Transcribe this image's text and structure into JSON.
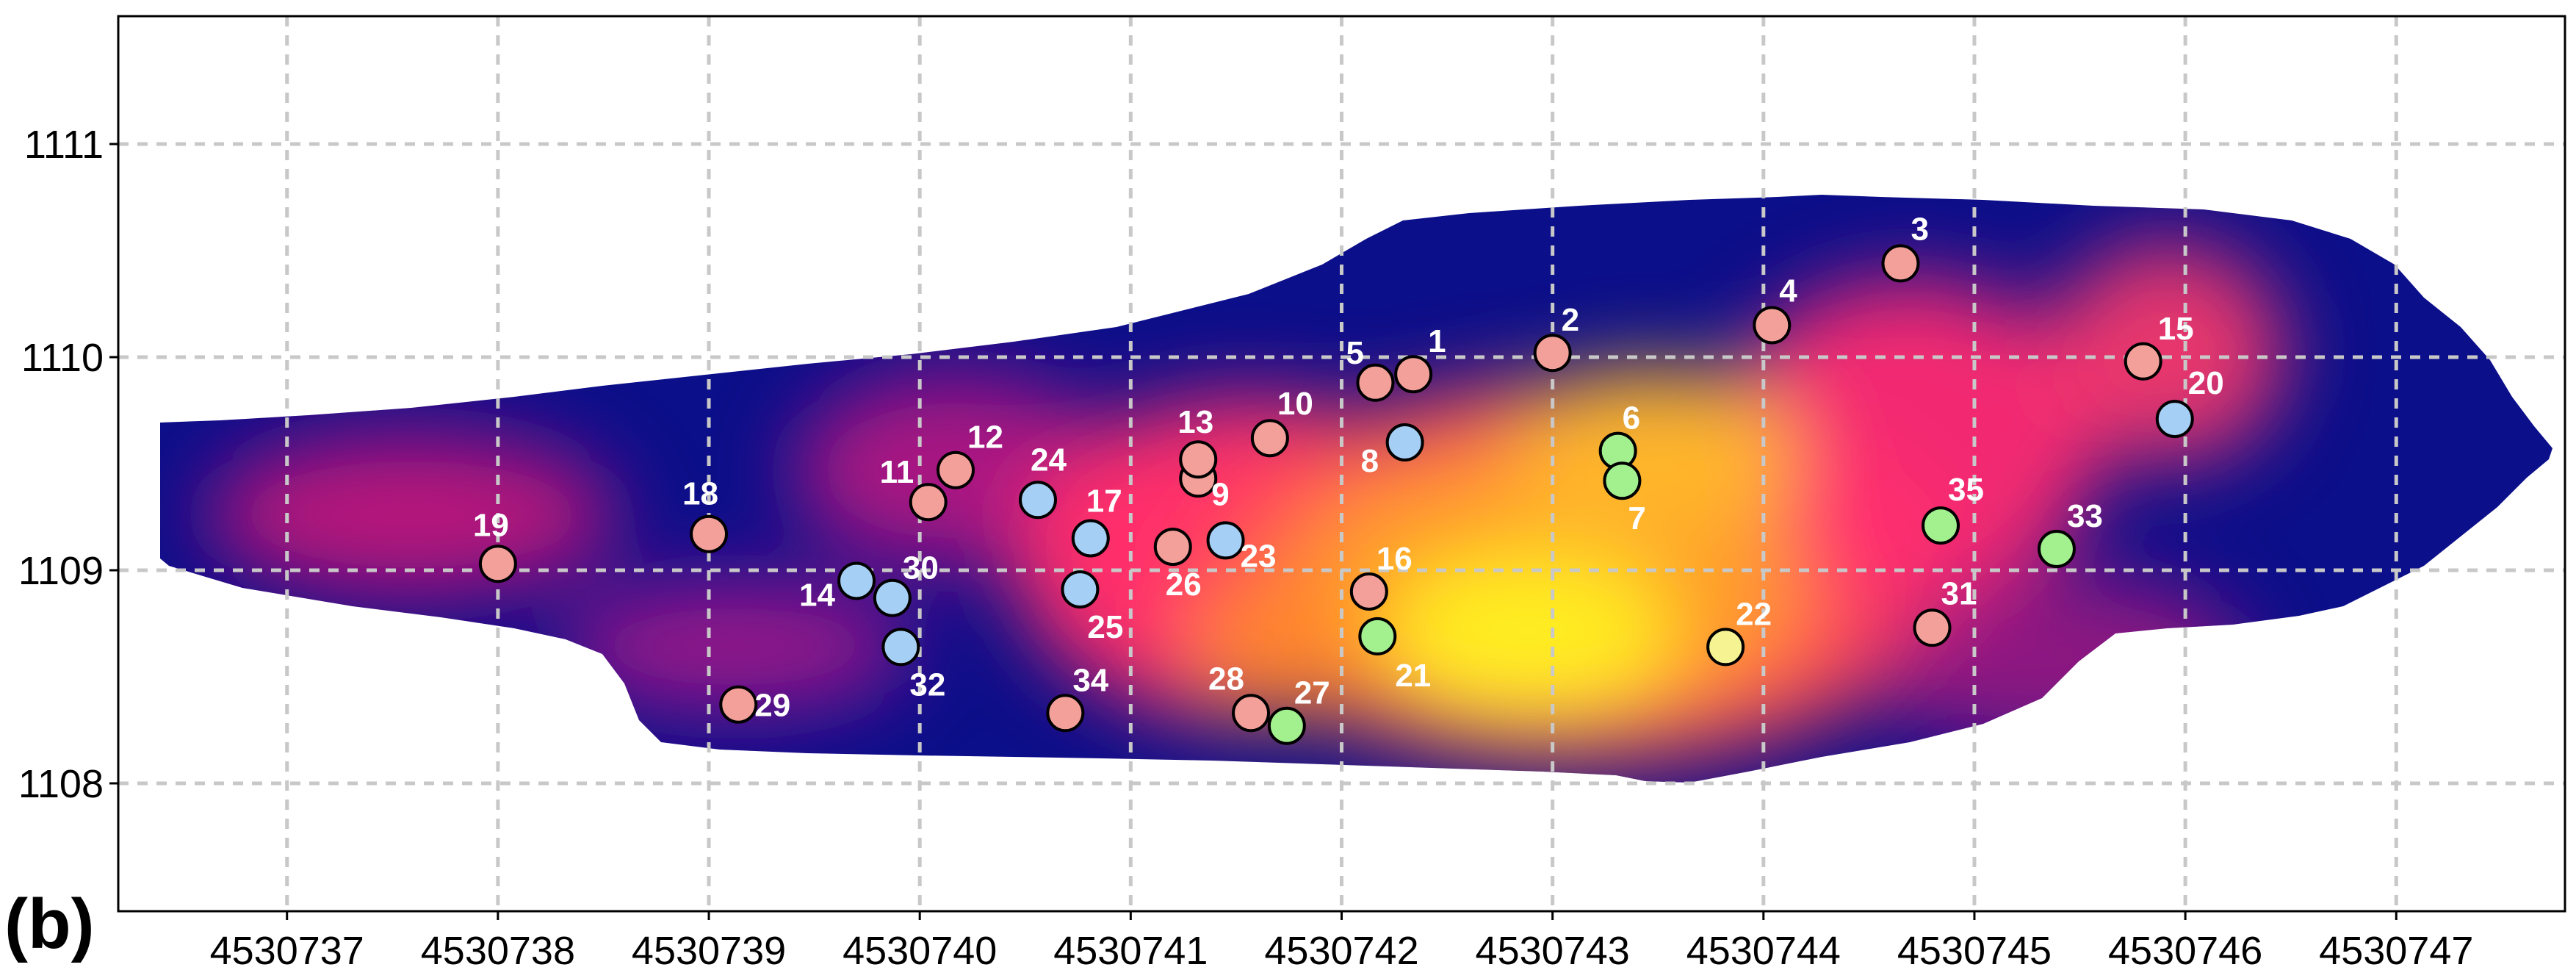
{
  "panel_label": "(b)",
  "chart_data": {
    "type": "scatter",
    "title": "",
    "xlabel": "",
    "ylabel": "",
    "xlim": [
      4530736.2,
      4530747.8
    ],
    "ylim": [
      1107.4,
      1111.6
    ],
    "x_ticks": [
      4530737,
      4530738,
      4530739,
      4530740,
      4530741,
      4530742,
      4530743,
      4530744,
      4530745,
      4530746,
      4530747
    ],
    "y_ticks": [
      1108,
      1109,
      1110,
      1111
    ],
    "x_tick_labels": [
      "4530737",
      "4530738",
      "4530739",
      "4530740",
      "4530741",
      "4530742",
      "4530743",
      "4530744",
      "4530745",
      "4530746",
      "4530747"
    ],
    "y_tick_labels": [
      "1108",
      "1109",
      "1110",
      "1111"
    ],
    "grid": true,
    "background": "interpolated heat map (dark blue low → magenta → yellow high) within sampled region",
    "point_colors": {
      "salmon": "#f4a09a",
      "blue": "#a6cff5",
      "green": "#a3f08f",
      "yellow": "#f6f492"
    },
    "points": [
      {
        "label": "1",
        "x": 4530742.34,
        "y": 1109.92,
        "color": "salmon"
      },
      {
        "label": "2",
        "x": 4530743.0,
        "y": 1110.02,
        "color": "salmon"
      },
      {
        "label": "3",
        "x": 4530744.65,
        "y": 1110.44,
        "color": "salmon"
      },
      {
        "label": "4",
        "x": 4530744.04,
        "y": 1110.15,
        "color": "salmon"
      },
      {
        "label": "5",
        "x": 4530742.16,
        "y": 1109.88,
        "color": "salmon"
      },
      {
        "label": "6",
        "x": 4530743.31,
        "y": 1109.56,
        "color": "green"
      },
      {
        "label": "7",
        "x": 4530743.33,
        "y": 1109.42,
        "color": "green"
      },
      {
        "label": "8",
        "x": 4530742.3,
        "y": 1109.6,
        "color": "blue"
      },
      {
        "label": "9",
        "x": 4530741.32,
        "y": 1109.43,
        "color": "salmon"
      },
      {
        "label": "10",
        "x": 4530741.66,
        "y": 1109.62,
        "color": "salmon"
      },
      {
        "label": "11",
        "x": 4530740.04,
        "y": 1109.32,
        "color": "salmon"
      },
      {
        "label": "12",
        "x": 4530740.17,
        "y": 1109.47,
        "color": "salmon"
      },
      {
        "label": "13",
        "x": 4530741.32,
        "y": 1109.52,
        "color": "salmon"
      },
      {
        "label": "14",
        "x": 4530739.7,
        "y": 1108.95,
        "color": "blue"
      },
      {
        "label": "15",
        "x": 4530745.8,
        "y": 1109.98,
        "color": "salmon"
      },
      {
        "label": "16",
        "x": 4530742.13,
        "y": 1108.9,
        "color": "salmon"
      },
      {
        "label": "17",
        "x": 4530740.81,
        "y": 1109.15,
        "color": "blue"
      },
      {
        "label": "18",
        "x": 4530739.0,
        "y": 1109.17,
        "color": "salmon"
      },
      {
        "label": "19",
        "x": 4530738.0,
        "y": 1109.03,
        "color": "salmon"
      },
      {
        "label": "20",
        "x": 4530745.95,
        "y": 1109.71,
        "color": "blue"
      },
      {
        "label": "21",
        "x": 4530742.17,
        "y": 1108.69,
        "color": "green"
      },
      {
        "label": "22",
        "x": 4530743.82,
        "y": 1108.64,
        "color": "yellow"
      },
      {
        "label": "23",
        "x": 4530741.45,
        "y": 1109.14,
        "color": "blue"
      },
      {
        "label": "24",
        "x": 4530740.56,
        "y": 1109.33,
        "color": "blue"
      },
      {
        "label": "25",
        "x": 4530740.76,
        "y": 1108.91,
        "color": "blue"
      },
      {
        "label": "26",
        "x": 4530741.2,
        "y": 1109.11,
        "color": "salmon"
      },
      {
        "label": "27",
        "x": 4530741.74,
        "y": 1108.27,
        "color": "green"
      },
      {
        "label": "28",
        "x": 4530741.57,
        "y": 1108.33,
        "color": "salmon"
      },
      {
        "label": "29",
        "x": 4530739.14,
        "y": 1108.37,
        "color": "salmon"
      },
      {
        "label": "30",
        "x": 4530739.87,
        "y": 1108.87,
        "color": "blue"
      },
      {
        "label": "31",
        "x": 4530744.8,
        "y": 1108.73,
        "color": "salmon"
      },
      {
        "label": "32",
        "x": 4530739.91,
        "y": 1108.64,
        "color": "blue"
      },
      {
        "label": "33",
        "x": 4530745.39,
        "y": 1109.1,
        "color": "green"
      },
      {
        "label": "34",
        "x": 4530740.69,
        "y": 1108.33,
        "color": "salmon"
      },
      {
        "label": "35",
        "x": 4530744.84,
        "y": 1109.21,
        "color": "green"
      }
    ]
  }
}
